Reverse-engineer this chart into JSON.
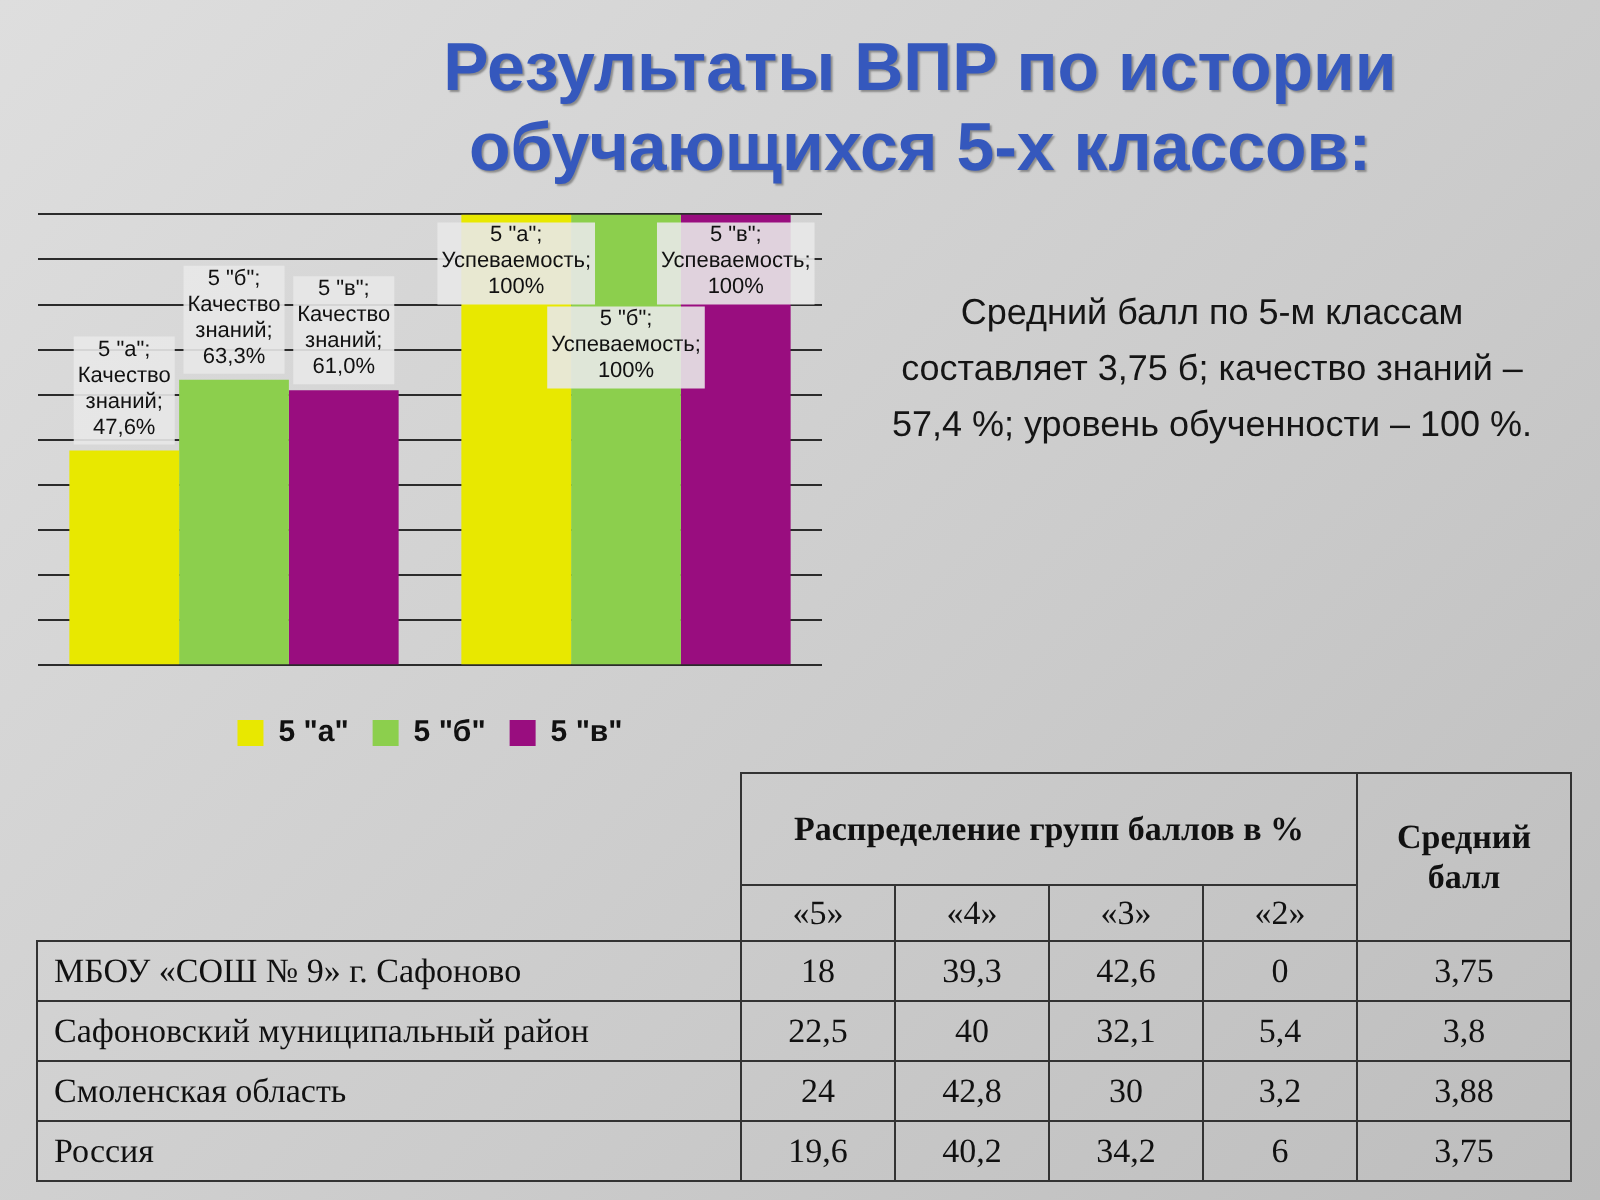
{
  "chart_data": [
    {
      "type": "bar",
      "title": "Результаты ВПР по истории обучающихся 5-х классов:",
      "categories": [
        null,
        null
      ],
      "series": [
        {
          "name": "5 \"а\"",
          "color": "#e8e800",
          "values": [
            47.6,
            100
          ],
          "value_labels": [
            "5 \"а\"; Качество знаний; 47,6%",
            "5 \"а\"; Успеваемость; 100%"
          ]
        },
        {
          "name": "5 \"б\"",
          "color": "#8ccf4d",
          "values": [
            63.3,
            100
          ],
          "value_labels": [
            "5 \"б\"; Качество знаний; 63,3%",
            "5 \"б\"; Успеваемость; 100%"
          ]
        },
        {
          "name": "5 \"в\"",
          "color": "#990d7f",
          "values": [
            61.0,
            100
          ],
          "value_labels": [
            "5 \"в\"; Качество знаний; 61,0%",
            "5 \"в\"; Успеваемость; 100%"
          ]
        }
      ],
      "ylim": [
        0,
        100
      ],
      "yticks": [
        {
          "value": 0,
          "label": null
        },
        {
          "value": 10,
          "label": null
        },
        {
          "value": 20,
          "label": null
        },
        {
          "value": 30,
          "label": null
        },
        {
          "value": 40,
          "label": null
        },
        {
          "value": 50,
          "label": null
        },
        {
          "value": 60,
          "label": null
        },
        {
          "value": 70,
          "label": null
        },
        {
          "value": 80,
          "label": null
        },
        {
          "value": 90,
          "label": null
        },
        {
          "value": 100,
          "label": null
        }
      ],
      "grid": "y",
      "legend": "bottom",
      "annotations": [
        "Средний балл по 5-м классам составляет 3,75 б; качество знаний – 57,4 %; уровень обученности – 100 %."
      ]
    },
    {
      "type": "heatmap",
      "xlabel": "Распределение групп баллов в %",
      "categories": [
        "«5»",
        "«4»",
        "«3»",
        "«2»"
      ],
      "y_categories": [
        "МБОУ «СОШ № 9» г. Сафоново",
        "Сафоновский муниципальный район",
        "Смоленская область",
        "Россия"
      ],
      "cells": [
        [
          18,
          39.3,
          42.6,
          0
        ],
        [
          22.5,
          40,
          32.1,
          5.4
        ],
        [
          24,
          42.8,
          30,
          3.2
        ],
        [
          19.6,
          40.2,
          34.2,
          6
        ]
      ],
      "cell_labels": [
        [
          "18",
          "39,3",
          "42,6",
          "0"
        ],
        [
          "22,5",
          "40",
          "32,1",
          "5,4"
        ],
        [
          "24",
          "42,8",
          "30",
          "3,2"
        ],
        [
          "19,6",
          "40,2",
          "34,2",
          "6"
        ]
      ],
      "y2label": "Средний балл",
      "y2_categories": [
        "3,75",
        "3,8",
        "3,88",
        "3,75"
      ]
    }
  ]
}
